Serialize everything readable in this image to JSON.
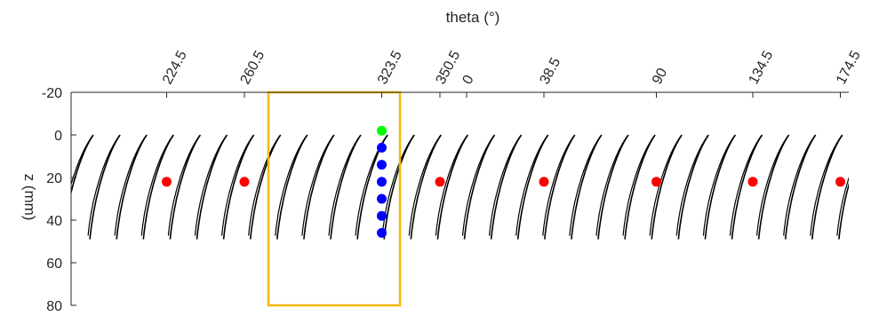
{
  "chart_data": {
    "type": "scatter",
    "title": "",
    "xlabel": "theta (°)",
    "ylabel": "z (mm)",
    "x_axis_position": "top",
    "x_reversed": false,
    "y_reversed": true,
    "xlim": [
      0,
      1000
    ],
    "ylim": [
      -20,
      80
    ],
    "grid": false,
    "x_tick_positions": [
      224.5,
      260.5,
      323.5,
      350.5,
      360,
      398.5,
      450,
      494.5,
      534.5
    ],
    "x_tick_labels": [
      "224.5",
      "260.5",
      "323.5",
      "350.5",
      "0",
      "38.5",
      "90",
      "134.5",
      "174.5"
    ],
    "y_ticks": [
      -20,
      0,
      20,
      40,
      60,
      80
    ],
    "y_tick_labels": [
      "-20",
      "0",
      "20",
      "40",
      "60",
      "80"
    ],
    "colors": {
      "curves": "#000000",
      "red_points": "#ff0000",
      "blue_points": "#0000ff",
      "green_point": "#00ff00",
      "highlight_box": "#f5b800",
      "axes": "#262626"
    },
    "curves": {
      "description_units": "theta positions in same axis units; each curve spans z 0 to 49",
      "top_x_start": 105,
      "spacing": 0.25,
      "count": 30
    },
    "highlight_box": {
      "theta_min": 260.5,
      "theta_max": 323.5,
      "z_min": -20,
      "z_max": 80
    },
    "series": [
      {
        "color": "#ff0000",
        "points": [
          {
            "theta": 224.5,
            "z": 22
          },
          {
            "theta": 260.5,
            "z": 22
          },
          {
            "theta": 350.5,
            "z": 22
          },
          {
            "theta": 38.5,
            "z": 22
          },
          {
            "theta": 90,
            "z": 22
          },
          {
            "theta": 134.5,
            "z": 22
          },
          {
            "theta": 174.5,
            "z": 22
          }
        ]
      },
      {
        "color": "#0000ff",
        "points": [
          {
            "theta": 323.5,
            "z": 6
          },
          {
            "theta": 323.5,
            "z": 14
          },
          {
            "theta": 323.5,
            "z": 22
          },
          {
            "theta": 323.5,
            "z": 30
          },
          {
            "theta": 323.5,
            "z": 38
          },
          {
            "theta": 323.5,
            "z": 46
          }
        ]
      },
      {
        "color": "#00ff00",
        "points": [
          {
            "theta": 323.5,
            "z": -2
          }
        ]
      }
    ]
  }
}
